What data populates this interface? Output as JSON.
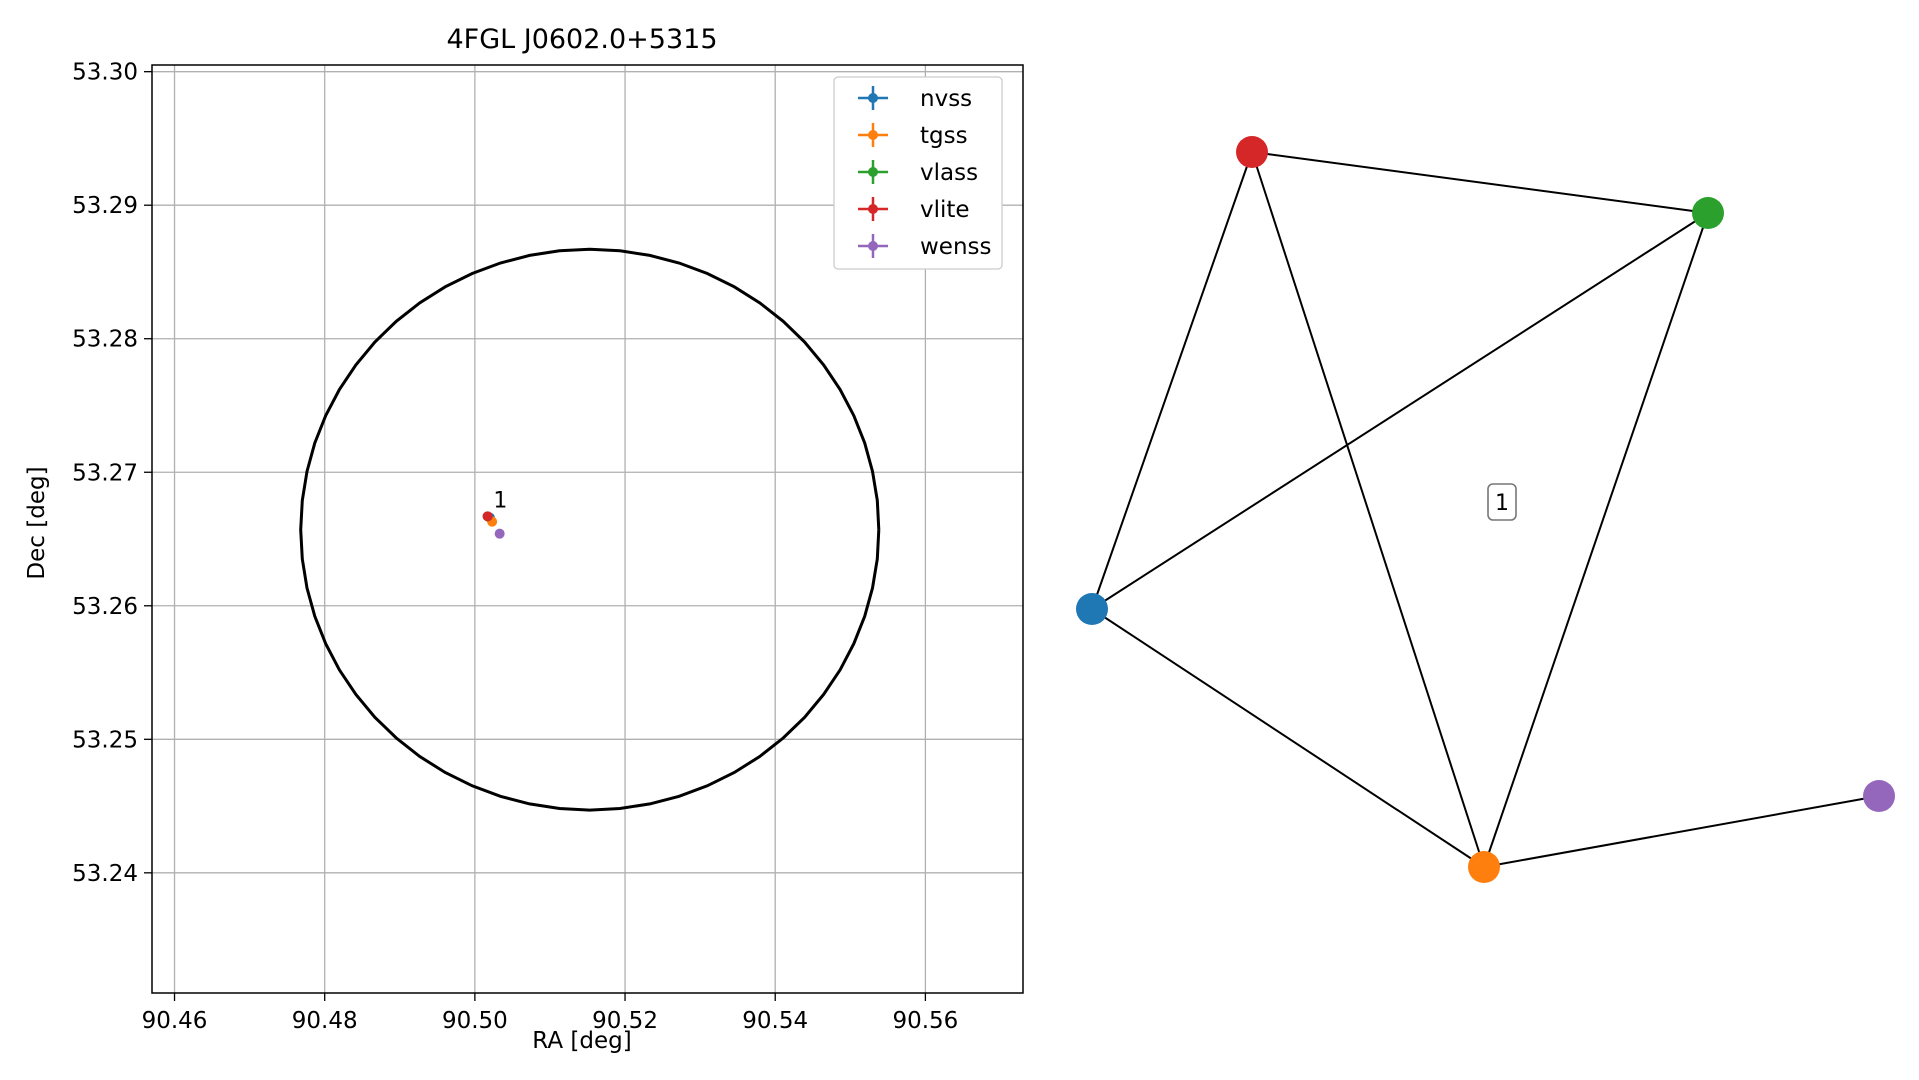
{
  "chart_data": [
    {
      "type": "scatter",
      "title": "4FGL J0602.0+5315",
      "xlabel": "RA [deg]",
      "ylabel": "Dec [deg]",
      "xlim": [
        90.457,
        90.573
      ],
      "ylim": [
        53.231,
        53.3005
      ],
      "xticks": [
        90.46,
        90.48,
        90.5,
        90.52,
        90.54,
        90.56
      ],
      "xtick_labels": [
        "90.46",
        "90.48",
        "90.50",
        "90.52",
        "90.54",
        "90.56"
      ],
      "yticks": [
        53.24,
        53.25,
        53.26,
        53.27,
        53.28,
        53.29,
        53.3
      ],
      "ytick_labels": [
        "53.24",
        "53.25",
        "53.26",
        "53.27",
        "53.28",
        "53.29",
        "53.30"
      ],
      "grid": true,
      "legend_position": "top-right",
      "series": [
        {
          "name": "nvss",
          "color": "#1f77b4",
          "x": [
            90.502
          ],
          "y": [
            53.2666
          ]
        },
        {
          "name": "tgss",
          "color": "#ff7f0e",
          "x": [
            90.5023
          ],
          "y": [
            53.2663
          ]
        },
        {
          "name": "vlass",
          "color": "#2ca02c",
          "x": [
            90.5017
          ],
          "y": [
            53.2667
          ]
        },
        {
          "name": "vlite",
          "color": "#d62728",
          "x": [
            90.5017
          ],
          "y": [
            53.2667
          ]
        },
        {
          "name": "wenss",
          "color": "#9467bd",
          "x": [
            90.5033
          ],
          "y": [
            53.2654
          ]
        }
      ],
      "circle": {
        "center": [
          90.5153,
          53.2657
        ],
        "ra_radius": 0.0385,
        "dec_radius": 0.021,
        "color": "#000000"
      },
      "annotations": [
        {
          "text": "1",
          "x": 90.503,
          "y": 53.2678
        }
      ]
    },
    {
      "type": "network",
      "nodes": [
        {
          "name": "nvss",
          "color": "#1f77b4"
        },
        {
          "name": "tgss",
          "color": "#ff7f0e"
        },
        {
          "name": "vlass",
          "color": "#2ca02c"
        },
        {
          "name": "vlite",
          "color": "#d62728"
        },
        {
          "name": "wenss",
          "color": "#9467bd"
        }
      ],
      "edges": [
        [
          "vlite",
          "vlass"
        ],
        [
          "vlite",
          "nvss"
        ],
        [
          "vlite",
          "tgss"
        ],
        [
          "vlass",
          "nvss"
        ],
        [
          "vlass",
          "tgss"
        ],
        [
          "nvss",
          "tgss"
        ],
        [
          "tgss",
          "wenss"
        ]
      ],
      "cluster_label": "1"
    }
  ]
}
